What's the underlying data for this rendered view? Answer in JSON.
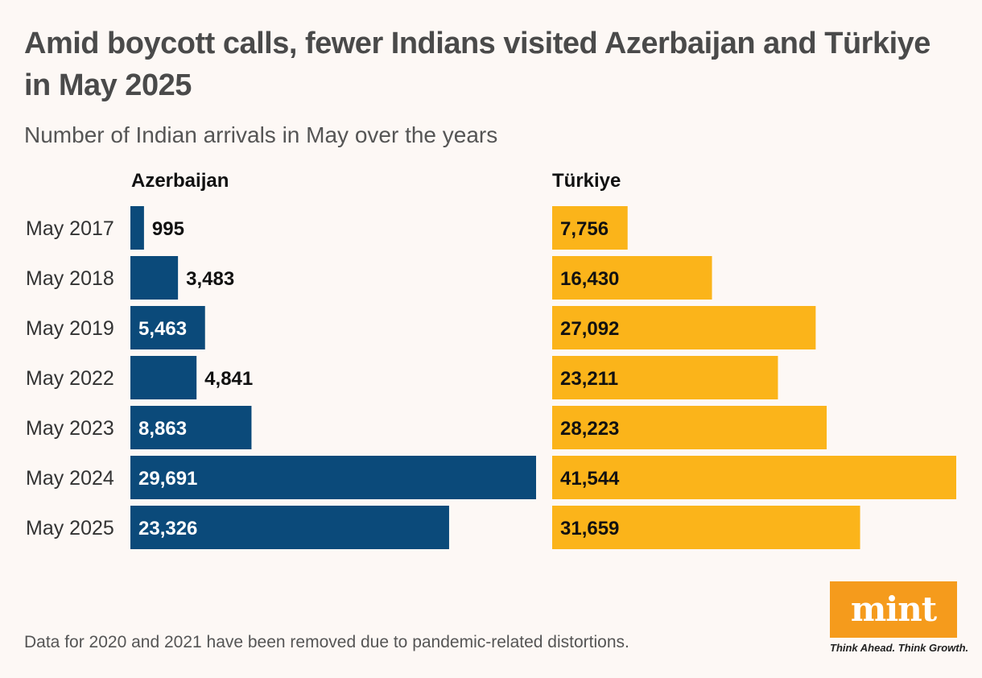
{
  "title": "Amid boycott calls, fewer Indians visited Azerbaijan and Türkiye in May 2025",
  "subtitle": "Number of Indian arrivals in May over the years",
  "footnote": "Data for 2020 and 2021 have been removed due to pandemic-related distortions.",
  "logo": {
    "word": "mint",
    "tagline": "Think Ahead. Think Growth.",
    "color": "#f59b1c"
  },
  "chart_data": {
    "type": "bar",
    "orientation": "horizontal",
    "categories": [
      "May 2017",
      "May 2018",
      "May 2019",
      "May 2022",
      "May 2023",
      "May 2024",
      "May 2025"
    ],
    "series": [
      {
        "name": "Azerbaijan",
        "color": "#0b4a7a",
        "values": [
          995,
          3483,
          5463,
          4841,
          8863,
          29691,
          23326
        ],
        "labels": [
          "995",
          "3,483",
          "5,463",
          "4,841",
          "8,863",
          "29,691",
          "23,326"
        ]
      },
      {
        "name": "Türkiye",
        "color": "#fbb41a",
        "values": [
          7756,
          16430,
          27092,
          23211,
          28223,
          41544,
          31659
        ],
        "labels": [
          "7,756",
          "16,430",
          "27,092",
          "23,211",
          "28,223",
          "41,544",
          "31,659"
        ]
      }
    ],
    "legend": "panel headers above each panel"
  }
}
